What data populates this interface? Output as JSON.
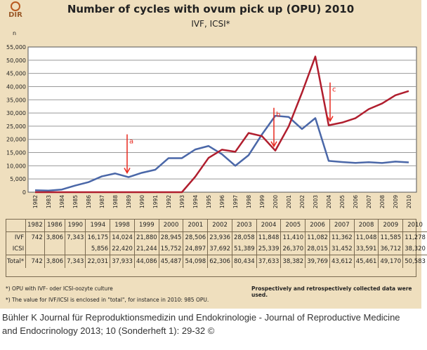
{
  "chart_data": {
    "type": "line",
    "title": "Number of cycles with ovum pick up (OPU) 2010",
    "subtitle": "IVF, ICSI*",
    "ylabel": "n",
    "ylim": [
      0,
      55000
    ],
    "yticks": [
      "0",
      "5,000",
      "10,000",
      "15,000",
      "20,000",
      "25,000",
      "30,000",
      "35,000",
      "40,000",
      "45,000",
      "50,000",
      "55,000"
    ],
    "x": [
      1982,
      1983,
      1984,
      1985,
      1986,
      1987,
      1988,
      1989,
      1990,
      1991,
      1992,
      1993,
      1994,
      1995,
      1996,
      1997,
      1998,
      1999,
      2000,
      2001,
      2002,
      2003,
      2004,
      2005,
      2006,
      2007,
      2008,
      2009,
      2010
    ],
    "grid": true,
    "series": [
      {
        "key": "IVF",
        "color": "#4a67a8",
        "values": [
          742,
          600,
          1000,
          2500,
          3806,
          6000,
          7100,
          5700,
          7343,
          8500,
          12900,
          12900,
          16175,
          17500,
          14400,
          10000,
          14024,
          21880,
          28945,
          28506,
          23936,
          28058,
          11848,
          11410,
          11082,
          11362,
          11048,
          11585,
          11278
        ]
      },
      {
        "key": "ICSI",
        "color": "#b01e2e",
        "values": [
          0,
          0,
          0,
          0,
          0,
          0,
          0,
          0,
          0,
          0,
          0,
          0,
          5856,
          13000,
          16100,
          15300,
          22420,
          21244,
          15752,
          24897,
          37692,
          51389,
          25339,
          26370,
          28015,
          31452,
          33591,
          36712,
          38320
        ]
      }
    ],
    "annotations": [
      {
        "label": "a",
        "year": 1989
      },
      {
        "label": "b",
        "year": 2000
      },
      {
        "label": "c",
        "year": 2004
      }
    ],
    "annotation_color": "#e8281e"
  },
  "table": {
    "years": [
      "1982",
      "1986",
      "1990",
      "1994",
      "1998",
      "1999",
      "2000",
      "2001",
      "2002",
      "2003",
      "2004",
      "2005",
      "2006",
      "2007",
      "2008",
      "2009",
      "2010"
    ],
    "rows": [
      {
        "label": "IVF",
        "values": [
          "742",
          "3,806",
          "7,343",
          "16,175",
          "14,024",
          "21,880",
          "28,945",
          "28,506",
          "23,936",
          "28,058",
          "11,848",
          "11,410",
          "11,082",
          "11,362",
          "11,048",
          "11,585",
          "11,278"
        ]
      },
      {
        "label": "ICSI",
        "values": [
          "",
          "",
          "",
          "5,856",
          "22,420",
          "21,244",
          "15,752",
          "24,897",
          "37,692",
          "51,389",
          "25,339",
          "26,370",
          "28,015",
          "31,452",
          "33,591",
          "36,712",
          "38,320"
        ]
      },
      {
        "label": "Total*",
        "values": [
          "742",
          "3,806",
          "7,343",
          "22,031",
          "37,933",
          "44,086",
          "45,487",
          "54,098",
          "62,306",
          "80,434",
          "37,633",
          "38,382",
          "39,769",
          "43,612",
          "45,461",
          "49,170",
          "50,583"
        ]
      }
    ]
  },
  "footnotes": {
    "note1": "*) OPU with IVF- oder ICSI-oozyte culture",
    "note2": "*)  The value for IVF/ICSI  is enclosed in \"total\", for instance in 2010: 985 OPU.",
    "note3": "Prospectively and retrospectively collected data were used."
  },
  "logo": {
    "text": "DIR"
  },
  "citation": "Bühler K Journal für Reproduktionsmedizin und Endokrinologie - Journal of Reproductive Medicine and Endocrinology 2013; 10 (Sonderheft 1):  29-32 ©"
}
